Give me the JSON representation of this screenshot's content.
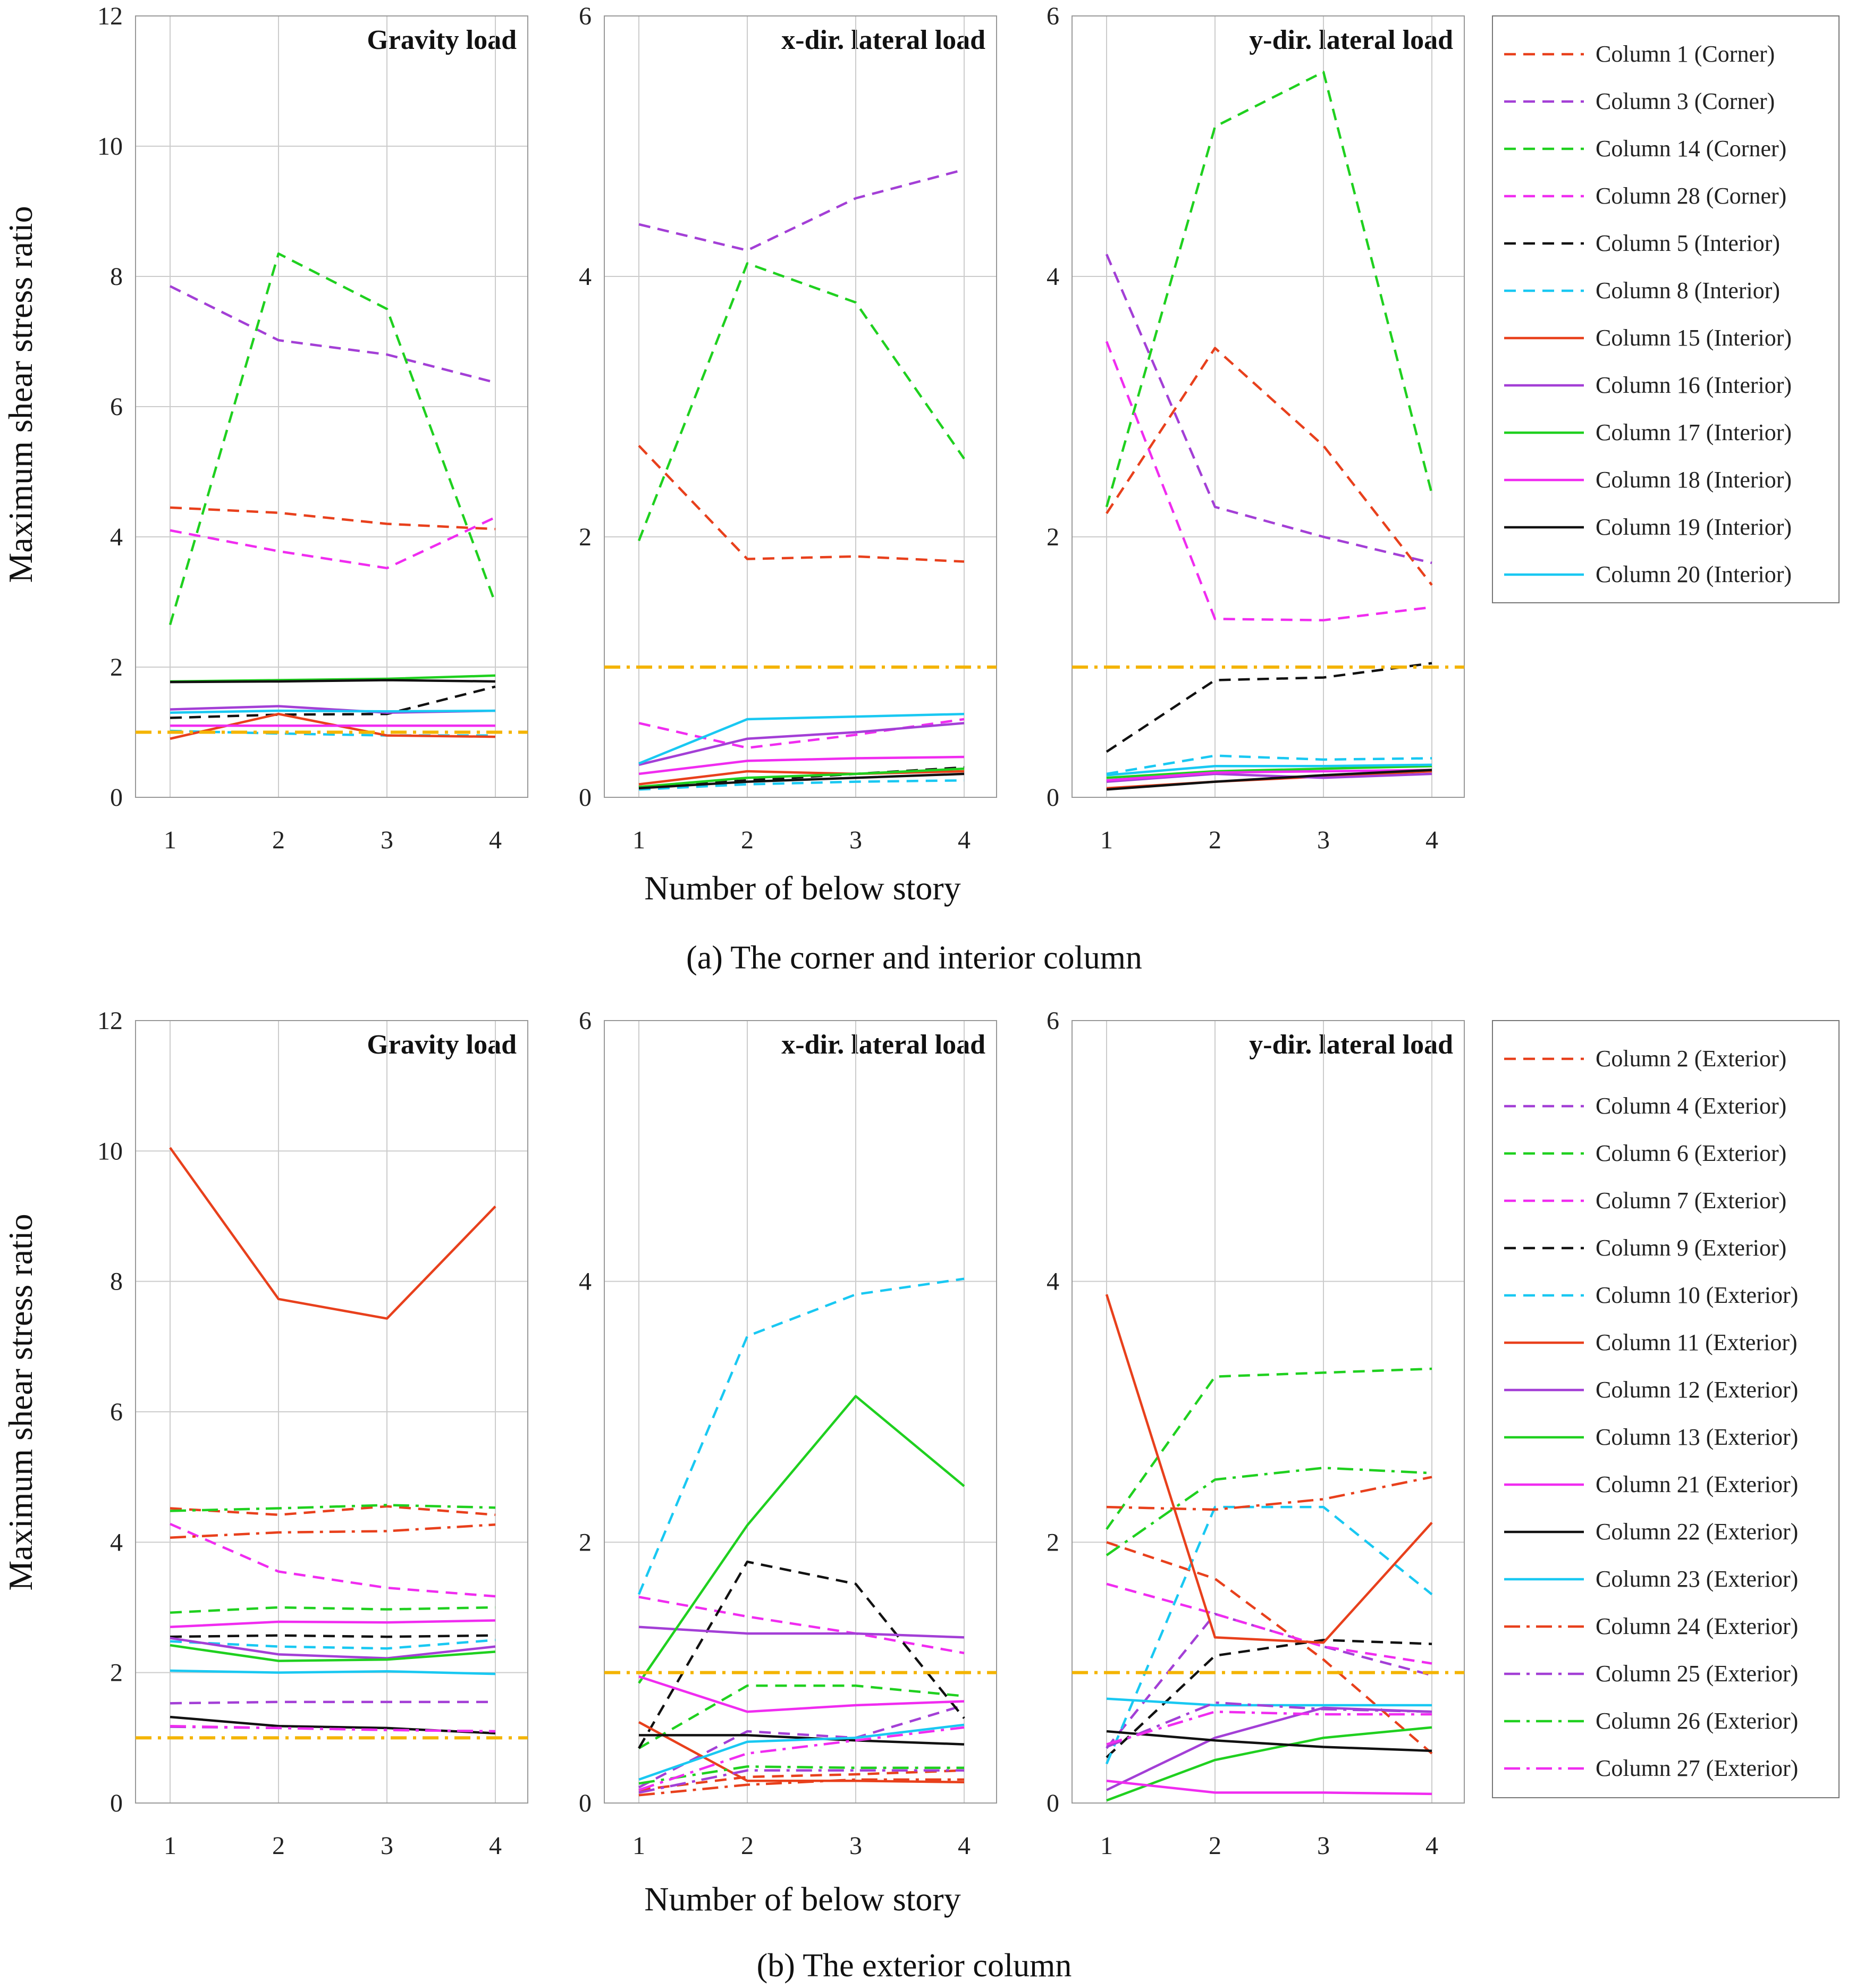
{
  "colors": {
    "red": "#e8401c",
    "purple": "#a33fd6",
    "green": "#1fd01f",
    "magenta": "#f02cf0",
    "black": "#111111",
    "cyan": "#19c8f2",
    "gold": "#f4b400",
    "grid": "#cccccc",
    "frame": "#999999"
  },
  "chart_data": [
    {
      "id": "a",
      "type": "line",
      "caption": "(a) The corner and interior column",
      "ylabel": "Maximum shear stress ratio",
      "xlabel": "Number of below story",
      "x": [
        1,
        2,
        3,
        4
      ],
      "legend": [
        {
          "name": "Column 1 (Corner)",
          "color": "red",
          "dash": "dashed"
        },
        {
          "name": "Column 3 (Corner)",
          "color": "purple",
          "dash": "dashed"
        },
        {
          "name": "Column 14 (Corner)",
          "color": "green",
          "dash": "dashed"
        },
        {
          "name": "Column 28 (Corner)",
          "color": "magenta",
          "dash": "dashed"
        },
        {
          "name": "Column 5 (Interior)",
          "color": "black",
          "dash": "dashed"
        },
        {
          "name": "Column 8 (Interior)",
          "color": "cyan",
          "dash": "dashed"
        },
        {
          "name": "Column 15 (Interior)",
          "color": "red",
          "dash": "solid"
        },
        {
          "name": "Column 16 (Interior)",
          "color": "purple",
          "dash": "solid"
        },
        {
          "name": "Column 17 (Interior)",
          "color": "green",
          "dash": "solid"
        },
        {
          "name": "Column 18 (Interior)",
          "color": "magenta",
          "dash": "solid"
        },
        {
          "name": "Column 19 (Interior)",
          "color": "black",
          "dash": "solid"
        },
        {
          "name": "Column 20 (Interior)",
          "color": "cyan",
          "dash": "solid"
        }
      ],
      "panels": [
        {
          "title": "Gravity load",
          "ylim": [
            0,
            12
          ],
          "yticks": [
            0,
            2,
            4,
            6,
            8,
            10,
            12
          ],
          "reference": 1.0,
          "series": {
            "Column 1 (Corner)": [
              4.45,
              4.37,
              4.2,
              4.12
            ],
            "Column 3 (Corner)": [
              7.85,
              7.02,
              6.8,
              6.37
            ],
            "Column 14 (Corner)": [
              2.65,
              8.35,
              7.5,
              2.98
            ],
            "Column 28 (Corner)": [
              4.1,
              3.78,
              3.52,
              4.3
            ],
            "Column 5 (Interior)": [
              1.22,
              1.27,
              1.28,
              1.7
            ],
            "Column 8 (Interior)": [
              1.02,
              0.98,
              0.95,
              0.95
            ],
            "Column 15 (Interior)": [
              0.9,
              1.28,
              0.95,
              0.93
            ],
            "Column 16 (Interior)": [
              1.35,
              1.4,
              1.3,
              1.33
            ],
            "Column 17 (Interior)": [
              1.78,
              1.8,
              1.82,
              1.87
            ],
            "Column 18 (Interior)": [
              1.1,
              1.1,
              1.1,
              1.1
            ],
            "Column 19 (Interior)": [
              1.77,
              1.78,
              1.8,
              1.78
            ],
            "Column 20 (Interior)": [
              1.3,
              1.33,
              1.32,
              1.33
            ]
          }
        },
        {
          "title": "x-dir. lateral load",
          "ylim": [
            0,
            6
          ],
          "yticks": [
            0,
            2,
            4,
            6
          ],
          "reference": 1.0,
          "series": {
            "Column 1 (Corner)": [
              2.7,
              1.83,
              1.85,
              1.81
            ],
            "Column 3 (Corner)": [
              4.4,
              4.2,
              4.6,
              4.82
            ],
            "Column 14 (Corner)": [
              1.97,
              4.1,
              3.8,
              2.6
            ],
            "Column 28 (Corner)": [
              0.57,
              0.38,
              0.48,
              0.6
            ],
            "Column 5 (Interior)": [
              0.08,
              0.13,
              0.18,
              0.23
            ],
            "Column 8 (Interior)": [
              0.06,
              0.1,
              0.12,
              0.13
            ],
            "Column 15 (Interior)": [
              0.1,
              0.2,
              0.18,
              0.2
            ],
            "Column 16 (Interior)": [
              0.25,
              0.45,
              0.5,
              0.57
            ],
            "Column 17 (Interior)": [
              0.08,
              0.15,
              0.18,
              0.22
            ],
            "Column 18 (Interior)": [
              0.18,
              0.28,
              0.3,
              0.31
            ],
            "Column 19 (Interior)": [
              0.07,
              0.12,
              0.15,
              0.18
            ],
            "Column 20 (Interior)": [
              0.26,
              0.6,
              0.62,
              0.64
            ]
          }
        },
        {
          "title": "y-dir. lateral load",
          "ylim": [
            0,
            6
          ],
          "yticks": [
            0,
            2,
            4,
            6
          ],
          "reference": 1.0,
          "series": {
            "Column 1 (Corner)": [
              2.18,
              3.45,
              2.7,
              1.63
            ],
            "Column 3 (Corner)": [
              4.17,
              2.23,
              2.0,
              1.8
            ],
            "Column 14 (Corner)": [
              2.23,
              5.15,
              5.57,
              2.33
            ],
            "Column 28 (Corner)": [
              3.5,
              1.37,
              1.36,
              1.46
            ],
            "Column 5 (Interior)": [
              0.35,
              0.9,
              0.92,
              1.03
            ],
            "Column 8 (Interior)": [
              0.18,
              0.32,
              0.29,
              0.3
            ],
            "Column 15 (Interior)": [
              0.07,
              0.12,
              0.16,
              0.2
            ],
            "Column 16 (Interior)": [
              0.12,
              0.18,
              0.15,
              0.18
            ],
            "Column 17 (Interior)": [
              0.15,
              0.2,
              0.22,
              0.24
            ],
            "Column 18 (Interior)": [
              0.13,
              0.19,
              0.2,
              0.21
            ],
            "Column 19 (Interior)": [
              0.06,
              0.12,
              0.17,
              0.21
            ],
            "Column 20 (Interior)": [
              0.17,
              0.24,
              0.24,
              0.25
            ]
          }
        }
      ]
    },
    {
      "id": "b",
      "type": "line",
      "caption": "(b) The exterior column",
      "ylabel": "Maximum shear stress ratio",
      "xlabel": "Number of below story",
      "x": [
        1,
        2,
        3,
        4
      ],
      "legend": [
        {
          "name": "Column 2 (Exterior)",
          "color": "red",
          "dash": "dashed"
        },
        {
          "name": "Column 4 (Exterior)",
          "color": "purple",
          "dash": "dashed"
        },
        {
          "name": "Column 6 (Exterior)",
          "color": "green",
          "dash": "dashed"
        },
        {
          "name": "Column 7 (Exterior)",
          "color": "magenta",
          "dash": "dashed"
        },
        {
          "name": "Column 9 (Exterior)",
          "color": "black",
          "dash": "dashed"
        },
        {
          "name": "Column 10 (Exterior)",
          "color": "cyan",
          "dash": "dashed"
        },
        {
          "name": "Column 11 (Exterior)",
          "color": "red",
          "dash": "solid"
        },
        {
          "name": "Column 12 (Exterior)",
          "color": "purple",
          "dash": "solid"
        },
        {
          "name": "Column 13 (Exterior)",
          "color": "green",
          "dash": "solid"
        },
        {
          "name": "Column 21 (Exterior)",
          "color": "magenta",
          "dash": "solid"
        },
        {
          "name": "Column 22 (Exterior)",
          "color": "black",
          "dash": "solid"
        },
        {
          "name": "Column 23 (Exterior)",
          "color": "cyan",
          "dash": "solid"
        },
        {
          "name": "Column 24 (Exterior)",
          "color": "red",
          "dash": "dashdot"
        },
        {
          "name": "Column 25 (Exterior)",
          "color": "purple",
          "dash": "dashdot"
        },
        {
          "name": "Column 26 (Exterior)",
          "color": "green",
          "dash": "dashdot"
        },
        {
          "name": "Column 27 (Exterior)",
          "color": "magenta",
          "dash": "dashdot"
        }
      ],
      "panels": [
        {
          "title": "Gravity load",
          "ylim": [
            0,
            12
          ],
          "yticks": [
            0,
            2,
            4,
            6,
            8,
            10,
            12
          ],
          "reference": 1.0,
          "series": {
            "Column 2 (Exterior)": [
              4.52,
              4.42,
              4.55,
              4.42
            ],
            "Column 4 (Exterior)": [
              1.53,
              1.55,
              1.55,
              1.55
            ],
            "Column 6 (Exterior)": [
              2.92,
              3.0,
              2.97,
              3.0
            ],
            "Column 7 (Exterior)": [
              4.28,
              3.55,
              3.3,
              3.17
            ],
            "Column 9 (Exterior)": [
              2.55,
              2.57,
              2.55,
              2.57
            ],
            "Column 10 (Exterior)": [
              2.48,
              2.4,
              2.37,
              2.5
            ],
            "Column 11 (Exterior)": [
              10.05,
              7.73,
              7.43,
              9.15
            ],
            "Column 12 (Exterior)": [
              2.53,
              2.28,
              2.22,
              2.4
            ],
            "Column 13 (Exterior)": [
              2.42,
              2.18,
              2.2,
              2.32
            ],
            "Column 21 (Exterior)": [
              2.7,
              2.78,
              2.77,
              2.8
            ],
            "Column 22 (Exterior)": [
              1.32,
              1.18,
              1.15,
              1.07
            ],
            "Column 23 (Exterior)": [
              2.03,
              2.0,
              2.02,
              1.98
            ],
            "Column 24 (Exterior)": [
              4.07,
              4.15,
              4.17,
              4.27
            ],
            "Column 25 (Exterior)": [
              1.17,
              1.15,
              1.12,
              1.1
            ],
            "Column 26 (Exterior)": [
              4.48,
              4.52,
              4.57,
              4.53
            ],
            "Column 27 (Exterior)": [
              1.18,
              1.15,
              1.12,
              1.1
            ]
          }
        },
        {
          "title": "x-dir. lateral load",
          "ylim": [
            0,
            6
          ],
          "yticks": [
            0,
            2,
            4,
            6
          ],
          "reference": 1.0,
          "series": {
            "Column 2 (Exterior)": [
              0.1,
              0.2,
              0.22,
              0.25
            ],
            "Column 4 (Exterior)": [
              0.12,
              0.55,
              0.5,
              0.75
            ],
            "Column 6 (Exterior)": [
              0.42,
              0.9,
              0.9,
              0.82
            ],
            "Column 7 (Exterior)": [
              1.58,
              1.43,
              1.3,
              1.15
            ],
            "Column 9 (Exterior)": [
              0.42,
              1.85,
              1.68,
              0.65
            ],
            "Column 10 (Exterior)": [
              1.6,
              3.58,
              3.9,
              4.02
            ],
            "Column 11 (Exterior)": [
              0.62,
              0.17,
              0.17,
              0.16
            ],
            "Column 12 (Exterior)": [
              1.35,
              1.3,
              1.3,
              1.27
            ],
            "Column 13 (Exterior)": [
              0.92,
              2.13,
              3.12,
              2.43
            ],
            "Column 21 (Exterior)": [
              0.97,
              0.7,
              0.75,
              0.78
            ],
            "Column 22 (Exterior)": [
              0.52,
              0.52,
              0.48,
              0.45
            ],
            "Column 23 (Exterior)": [
              0.18,
              0.47,
              0.5,
              0.6
            ],
            "Column 24 (Exterior)": [
              0.06,
              0.14,
              0.18,
              0.18
            ],
            "Column 25 (Exterior)": [
              0.08,
              0.25,
              0.25,
              0.25
            ],
            "Column 26 (Exterior)": [
              0.15,
              0.28,
              0.27,
              0.27
            ],
            "Column 27 (Exterior)": [
              0.1,
              0.38,
              0.48,
              0.58
            ]
          }
        },
        {
          "title": "y-dir. lateral load",
          "ylim": [
            0,
            6
          ],
          "yticks": [
            0,
            2,
            4,
            6
          ],
          "reference": 1.0,
          "series": {
            "Column 2 (Exterior)": [
              2.0,
              1.72,
              1.1,
              0.38
            ],
            "Column 4 (Exterior)": [
              0.42,
              1.45,
              1.2,
              0.98
            ],
            "Column 6 (Exterior)": [
              2.1,
              3.27,
              3.3,
              3.33
            ],
            "Column 7 (Exterior)": [
              1.68,
              1.45,
              1.2,
              1.07
            ],
            "Column 9 (Exterior)": [
              0.35,
              1.13,
              1.25,
              1.22
            ],
            "Column 10 (Exterior)": [
              0.3,
              2.27,
              2.27,
              1.6
            ],
            "Column 11 (Exterior)": [
              3.9,
              1.27,
              1.23,
              2.15
            ],
            "Column 12 (Exterior)": [
              0.1,
              0.5,
              0.73,
              0.7
            ],
            "Column 13 (Exterior)": [
              0.02,
              0.33,
              0.5,
              0.58
            ],
            "Column 21 (Exterior)": [
              0.17,
              0.08,
              0.08,
              0.07
            ],
            "Column 22 (Exterior)": [
              0.55,
              0.48,
              0.43,
              0.4
            ],
            "Column 23 (Exterior)": [
              0.8,
              0.75,
              0.75,
              0.75
            ],
            "Column 24 (Exterior)": [
              2.27,
              2.25,
              2.33,
              2.5
            ],
            "Column 25 (Exterior)": [
              0.43,
              0.77,
              0.72,
              0.7
            ],
            "Column 26 (Exterior)": [
              1.9,
              2.48,
              2.57,
              2.53
            ],
            "Column 27 (Exterior)": [
              0.45,
              0.7,
              0.68,
              0.68
            ]
          }
        }
      ]
    }
  ]
}
